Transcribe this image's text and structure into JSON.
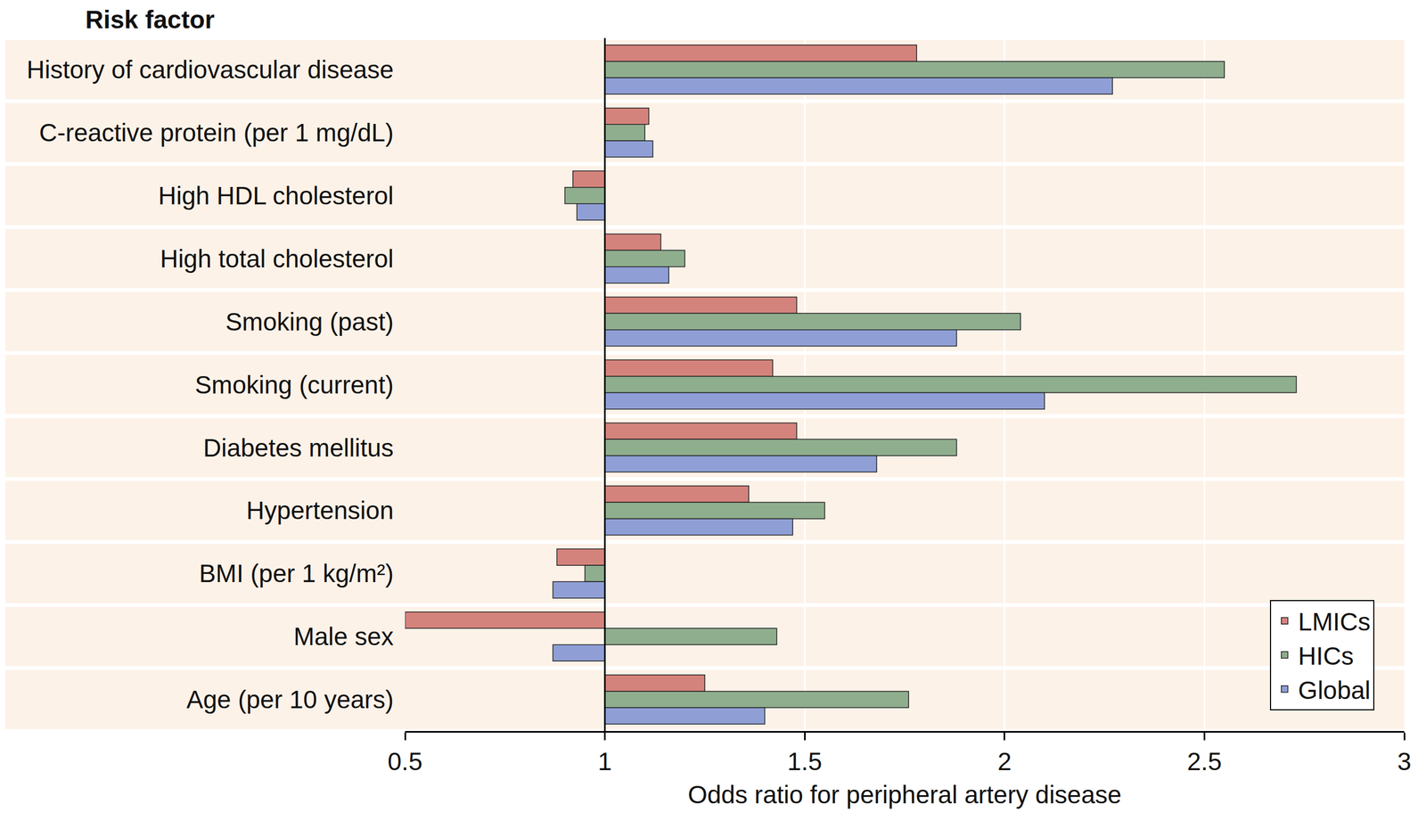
{
  "chart_data": {
    "type": "bar",
    "orientation": "horizontal",
    "xlabel": "Odds ratio for peripheral artery disease",
    "ylabel": "Risk factor",
    "categories": [
      "History of cardiovascular disease",
      "C-reactive protein (per 1 mg/dL)",
      "High HDL cholesterol",
      "High total cholesterol",
      "Smoking (past)",
      "Smoking (current)",
      "Diabetes mellitus",
      "Hypertension",
      "BMI (per 1 kg/m²)",
      "Male sex",
      "Age (per 10 years)"
    ],
    "series": [
      {
        "name": "LMICs",
        "color": "#d4837c",
        "values": [
          1.78,
          1.11,
          0.92,
          1.14,
          1.48,
          1.42,
          1.48,
          1.36,
          0.88,
          0.5,
          1.25
        ]
      },
      {
        "name": "HICs",
        "color": "#8fae8e",
        "values": [
          2.55,
          1.1,
          0.9,
          1.2,
          2.04,
          2.73,
          1.88,
          1.55,
          0.95,
          1.43,
          1.76
        ]
      },
      {
        "name": "Global",
        "color": "#8f9fd6",
        "values": [
          2.27,
          1.12,
          0.93,
          1.16,
          1.88,
          2.1,
          1.68,
          1.47,
          0.87,
          0.87,
          1.4
        ]
      }
    ],
    "xlim": [
      0.5,
      3
    ],
    "xticks": [
      0.5,
      1,
      1.5,
      2,
      2.5,
      3
    ],
    "grid": true,
    "legend": "bottom right"
  }
}
